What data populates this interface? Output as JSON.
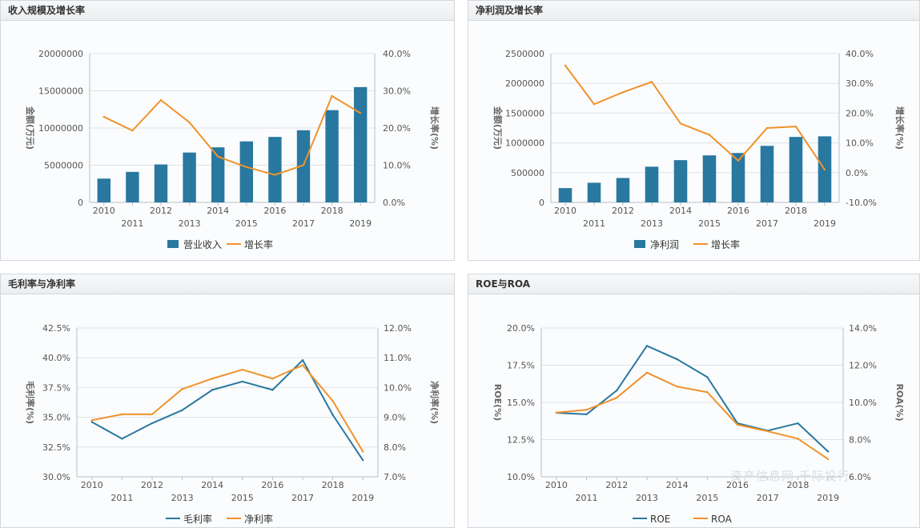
{
  "chart_data": [
    {
      "id": "c1",
      "type": "bar+line",
      "title": "收入规模及增长率",
      "categories": [
        "2010",
        "2011",
        "2012",
        "2013",
        "2014",
        "2015",
        "2016",
        "2017",
        "2018",
        "2019"
      ],
      "series": [
        {
          "name": "营业收入",
          "kind": "bar",
          "axis": "left",
          "color": "#2878a0",
          "values": [
            3200000,
            4100000,
            5100000,
            6700000,
            7400000,
            8200000,
            8800000,
            9700000,
            12400000,
            15500000
          ]
        },
        {
          "name": "增长率",
          "kind": "line",
          "axis": "right",
          "color": "#f0922b",
          "values": [
            23.0,
            19.3,
            27.5,
            21.5,
            12.3,
            9.5,
            7.4,
            10.0,
            28.6,
            24.0
          ]
        }
      ],
      "left_axis": {
        "label": "金额(万元)",
        "ticks": [
          "20000000",
          "15000000",
          "10000000",
          "5000000",
          "0"
        ],
        "min": 0,
        "max": 20000000
      },
      "right_axis": {
        "label": "增长率(%)",
        "ticks": [
          "40.0%",
          "30.0%",
          "20.0%",
          "10.0%",
          "0.0%"
        ],
        "min": 0,
        "max": 40
      }
    },
    {
      "id": "c2",
      "type": "bar+line",
      "title": "净利润及增长率",
      "categories": [
        "2010",
        "2011",
        "2012",
        "2013",
        "2014",
        "2015",
        "2016",
        "2017",
        "2018",
        "2019"
      ],
      "series": [
        {
          "name": "净利润",
          "kind": "bar",
          "axis": "left",
          "color": "#2878a0",
          "values": [
            240000,
            330000,
            410000,
            600000,
            710000,
            790000,
            830000,
            950000,
            1100000,
            1110000
          ]
        },
        {
          "name": "增长率",
          "kind": "line",
          "axis": "right",
          "color": "#f0922b",
          "values": [
            36.0,
            23.0,
            27.0,
            30.5,
            16.5,
            12.7,
            4.0,
            15.0,
            15.5,
            1.0
          ]
        }
      ],
      "left_axis": {
        "label": "金额(万元)",
        "ticks": [
          "2500000",
          "2000000",
          "1500000",
          "1000000",
          "500000",
          "0"
        ],
        "min": 0,
        "max": 2500000
      },
      "right_axis": {
        "label": "增长率(%)",
        "ticks": [
          "40.0%",
          "30.0%",
          "20.0%",
          "10.0%",
          "0.0%",
          "-10.0%"
        ],
        "min": -10,
        "max": 40
      }
    },
    {
      "id": "c3",
      "type": "line",
      "title": "毛利率与净利率",
      "categories": [
        "2010",
        "2011",
        "2012",
        "2013",
        "2014",
        "2015",
        "2016",
        "2017",
        "2018",
        "2019"
      ],
      "series": [
        {
          "name": "毛利率",
          "kind": "line",
          "axis": "left",
          "color": "#2878a0",
          "values": [
            34.6,
            33.2,
            34.5,
            35.6,
            37.3,
            38.0,
            37.3,
            39.8,
            35.2,
            31.4
          ]
        },
        {
          "name": "净利率",
          "kind": "line",
          "axis": "right",
          "color": "#f0922b",
          "values": [
            8.9,
            9.1,
            9.1,
            9.95,
            10.3,
            10.6,
            10.3,
            10.75,
            9.55,
            7.85
          ]
        }
      ],
      "left_axis": {
        "label": "毛利率(%)",
        "ticks": [
          "42.5%",
          "40.0%",
          "37.5%",
          "35.0%",
          "32.5%",
          "30.0%"
        ],
        "min": 30,
        "max": 42.5
      },
      "right_axis": {
        "label": "净利率(%)",
        "ticks": [
          "12.0%",
          "11.0%",
          "10.0%",
          "9.0%",
          "8.0%",
          "7.0%"
        ],
        "min": 7,
        "max": 12
      }
    },
    {
      "id": "c4",
      "type": "line",
      "title": "ROE与ROA",
      "categories": [
        "2010",
        "2011",
        "2012",
        "2013",
        "2014",
        "2015",
        "2016",
        "2017",
        "2018",
        "2019"
      ],
      "series": [
        {
          "name": "ROE",
          "kind": "line",
          "axis": "left",
          "color": "#2878a0",
          "values": [
            14.3,
            14.2,
            15.8,
            18.8,
            17.9,
            16.7,
            13.6,
            13.1,
            13.6,
            11.7
          ]
        },
        {
          "name": "ROA",
          "kind": "line",
          "axis": "right",
          "color": "#f0922b",
          "values": [
            9.45,
            9.6,
            10.25,
            11.6,
            10.85,
            10.55,
            8.8,
            8.45,
            8.05,
            6.95
          ]
        }
      ],
      "left_axis": {
        "label": "ROE(%)",
        "ticks": [
          "20.0%",
          "17.5%",
          "15.0%",
          "12.5%",
          "10.0%"
        ],
        "min": 10,
        "max": 20
      },
      "right_axis": {
        "label": "ROA(%)",
        "ticks": [
          "14.0%",
          "12.0%",
          "10.0%",
          "8.0%",
          "6.0%"
        ],
        "min": 6,
        "max": 14
      }
    }
  ],
  "watermark": "资产信息网 千际投行"
}
